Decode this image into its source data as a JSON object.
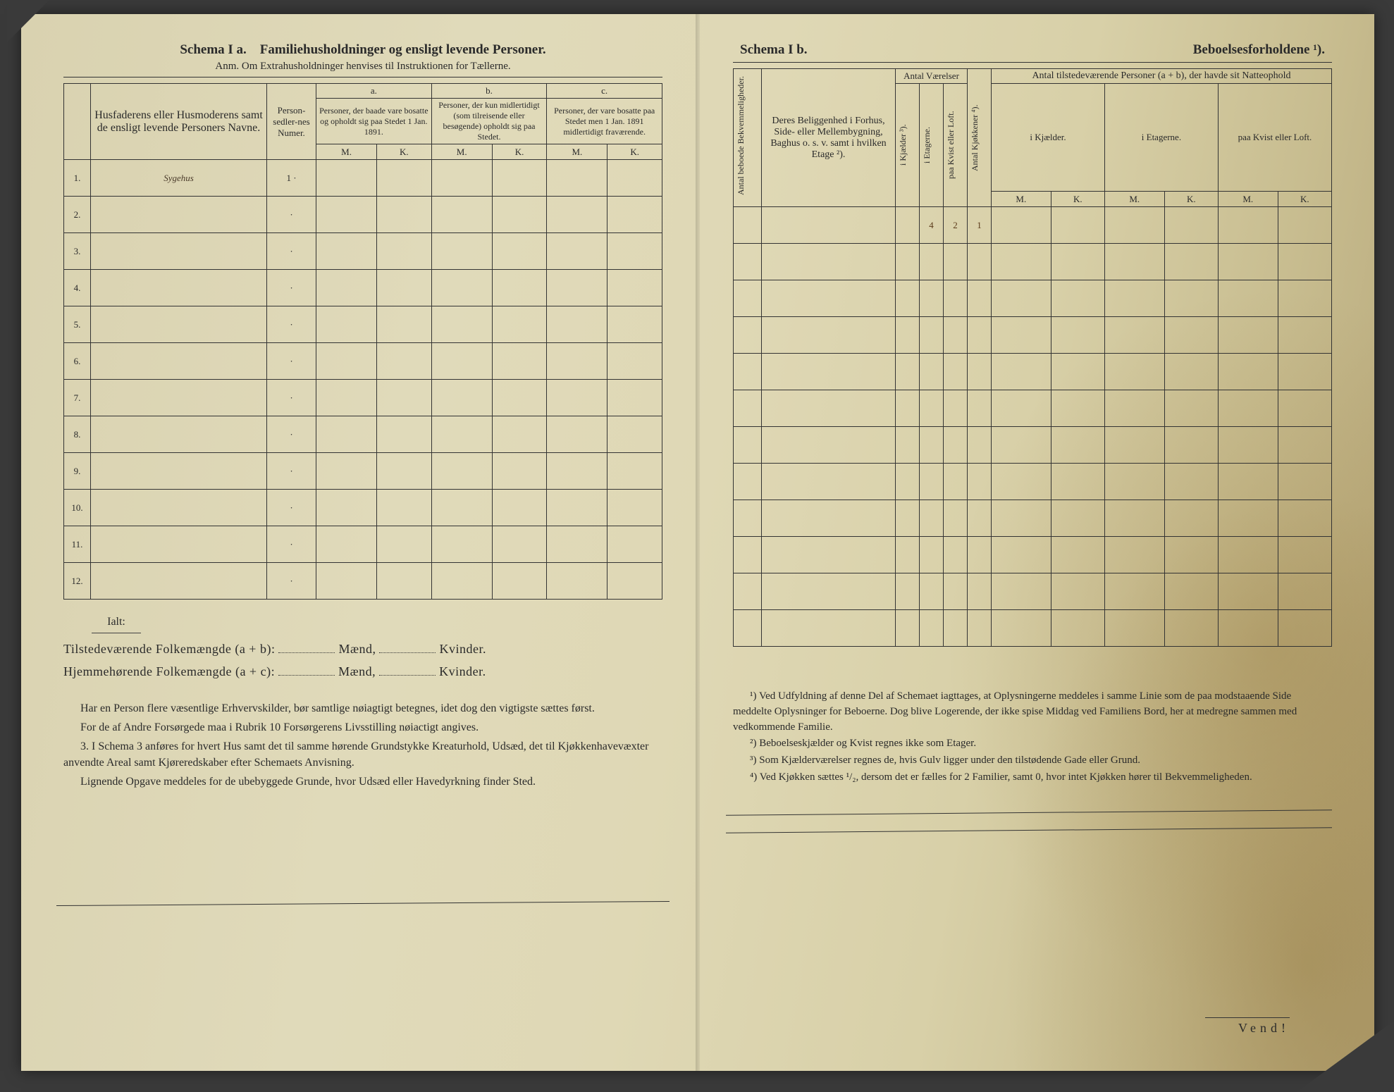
{
  "left": {
    "schema_label": "Schema I a.",
    "schema_title": "Familiehusholdninger og ensligt levende Personer.",
    "subtitle": "Anm. Om Extrahusholdninger henvises til Instruktionen for Tællerne.",
    "col_names": "Husfaderens eller Husmoderens samt de ensligt levende Personers Navne.",
    "col_personsedler": "Person-sedler-nes Numer.",
    "group_a": "a.",
    "group_b": "b.",
    "group_c": "c.",
    "col_a": "Personer, der baade vare bosatte og opholdt sig paa Stedet 1 Jan. 1891.",
    "col_b": "Personer, der kun midlertidigt (som tilreisende eller besøgende) opholdt sig paa Stedet.",
    "col_c": "Personer, der vare bosatte paa Stedet men 1 Jan. 1891 midlertidigt fraværende.",
    "mk_m": "M.",
    "mk_k": "K.",
    "rows": [
      {
        "num": "1.",
        "name": "Sygehus",
        "psed": "1 ·"
      },
      {
        "num": "2.",
        "name": "",
        "psed": "·"
      },
      {
        "num": "3.",
        "name": "",
        "psed": "·"
      },
      {
        "num": "4.",
        "name": "",
        "psed": "·"
      },
      {
        "num": "5.",
        "name": "",
        "psed": "·"
      },
      {
        "num": "6.",
        "name": "",
        "psed": "·"
      },
      {
        "num": "7.",
        "name": "",
        "psed": "·"
      },
      {
        "num": "8.",
        "name": "",
        "psed": "·"
      },
      {
        "num": "9.",
        "name": "",
        "psed": "·"
      },
      {
        "num": "10.",
        "name": "",
        "psed": "·"
      },
      {
        "num": "11.",
        "name": "",
        "psed": "·"
      },
      {
        "num": "12.",
        "name": "",
        "psed": "·"
      }
    ],
    "ialt": "Ialt:",
    "totals_present": "Tilstedeværende Folkemængde (a + b):",
    "totals_home": "Hjemmehørende Folkemængde (a + c):",
    "maend": "Mænd,",
    "kvinder": "Kvinder.",
    "notes": [
      "Har en Person flere væsentlige Erhvervskilder, bør samtlige nøiagtigt betegnes, idet dog den vigtigste sættes først.",
      "For de af Andre Forsørgede maa i Rubrik 10 Forsørgerens Livsstilling nøiactigt angives.",
      "3. I Schema 3 anføres for hvert Hus samt det til samme hørende Grundstykke Kreaturhold, Udsæd, det til Kjøkkenhavevæxter anvendte Areal samt Kjøreredskaber efter Schemaets Anvisning.",
      "Lignende Opgave meddeles for de ubebyggede Grunde, hvor Udsæd eller Havedyrkning finder Sted."
    ]
  },
  "right": {
    "schema_label": "Schema I b.",
    "schema_title": "Beboelsesforholdene ¹).",
    "col_bekvem": "Antal beboede Bekvemmeligheder.",
    "col_beligg": "Deres Beliggenhed i Forhus, Side- eller Mellembygning, Baghus o. s. v. samt i hvilken Etage ²).",
    "group_vaer": "Antal Værelser",
    "col_kjaelder": "i Kjælder ³).",
    "col_etagerne": "i Etagerne.",
    "col_kvist": "paa Kvist eller Loft.",
    "col_kjokken": "Antal Kjøkkener ⁴).",
    "group_persons": "Antal tilstedeværende Personer (a + b), der havde sit Natteophold",
    "col_p_kjael": "i Kjælder.",
    "col_p_etag": "i Etagerne.",
    "col_p_kvist": "paa Kvist eller Loft.",
    "mk_m": "M.",
    "mk_k": "K.",
    "row1": {
      "etagerne": "4",
      "kvist": "2",
      "kjokken": "1"
    },
    "footnotes": [
      "¹) Ved Udfyldning af denne Del af Schemaet iagttages, at Oplysningerne meddeles i samme Linie som de paa modstaaende Side meddelte Oplysninger for Beboerne. Dog blive Logerende, der ikke spise Middag ved Familiens Bord, her at medregne sammen med vedkommende Familie.",
      "²) Beboelseskjælder og Kvist regnes ikke som Etager.",
      "³) Som Kjælderværelser regnes de, hvis Gulv ligger under den tilstødende Gade eller Grund.",
      "⁴) Ved Kjøkken sættes ¹/₂, dersom det er fælles for 2 Familier, samt 0, hvor intet Kjøkken hører til Bekvemmeligheden."
    ],
    "vend": "Vend!"
  },
  "colors": {
    "ink": "#2a2a2a",
    "handwriting": "#4a3a2a",
    "paper_base": "#dfd8b5",
    "stain": "#b5a577"
  }
}
